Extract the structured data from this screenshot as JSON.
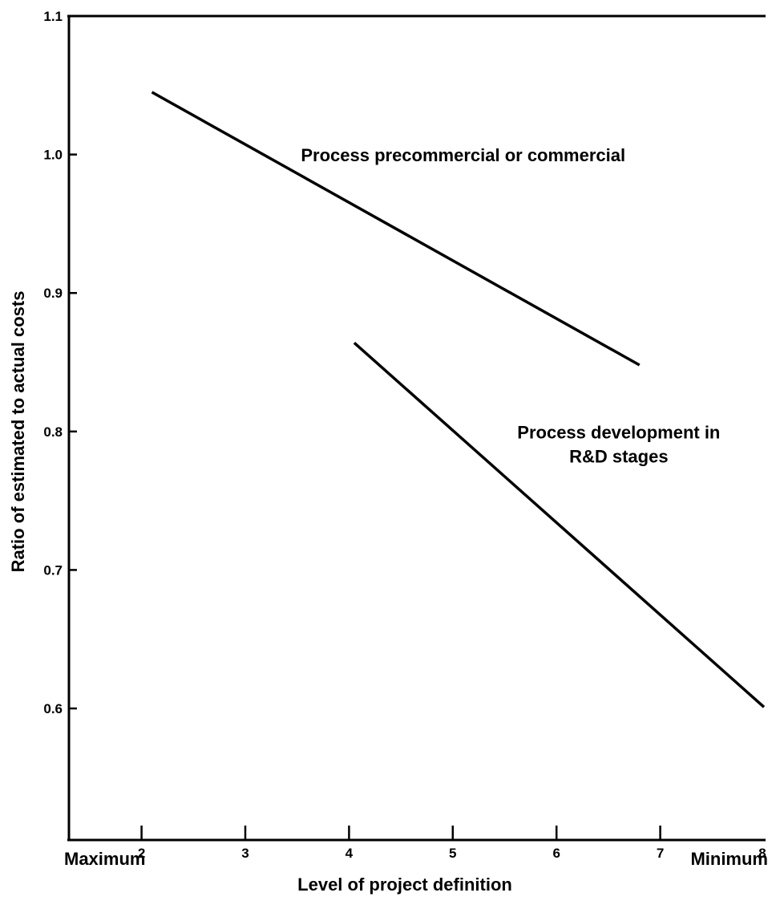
{
  "chart_data": {
    "type": "line",
    "title": "",
    "xlabel": "Level of project definition",
    "ylabel": "Ratio of estimated to actual costs",
    "xlim": [
      1.3,
      8.0
    ],
    "ylim": [
      0.505,
      1.1
    ],
    "x_ticks": [
      2,
      3,
      4,
      5,
      6,
      7,
      8
    ],
    "x_tick_labels": [
      "2",
      "3",
      "4",
      "5",
      "6",
      "7",
      "8"
    ],
    "y_ticks": [
      0.6,
      0.7,
      0.8,
      0.9,
      1.0,
      1.1
    ],
    "y_tick_labels": [
      "0.6",
      "0.7",
      "0.8",
      "0.9",
      "1.0",
      "1.1"
    ],
    "x_extreme_labels": {
      "left": "Maximum",
      "right": "Minimum"
    },
    "grid": false,
    "legend": "none",
    "series": [
      {
        "x": [
          2.1,
          6.8
        ],
        "y": [
          1.045,
          0.848
        ]
      },
      {
        "x": [
          4.05,
          8.0
        ],
        "y": [
          0.864,
          0.601
        ]
      }
    ],
    "annotations": [
      {
        "lines": [
          "Process precommercial or commercial"
        ],
        "x": 5.1,
        "y": 0.995
      },
      {
        "lines": [
          "Process development in",
          "R&D stages"
        ],
        "x": 6.6,
        "y": 0.795
      }
    ]
  }
}
